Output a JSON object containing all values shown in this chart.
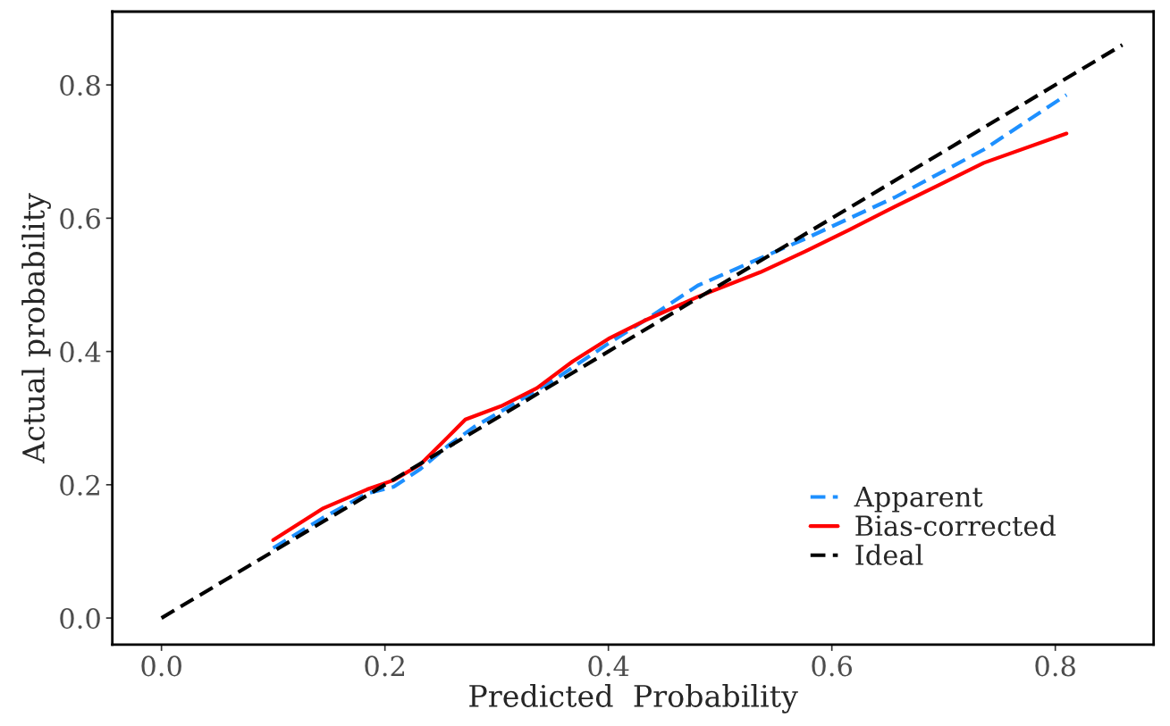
{
  "chart_data": {
    "type": "line",
    "xlabel": "Predicted  Probability",
    "ylabel": "Actual probability",
    "xlim": [
      -0.044,
      0.888
    ],
    "ylim": [
      -0.04,
      0.91
    ],
    "xticks": [
      {
        "value": 0,
        "label": "0.0"
      },
      0.2,
      0.4,
      0.6,
      0.8
    ],
    "yticks": [
      {
        "value": 0,
        "label": "0.0"
      },
      0.2,
      0.4,
      0.6,
      0.8
    ],
    "grid": false,
    "legend": "bottom right",
    "series": [
      {
        "name": "Apparent",
        "color": "#1e90ff",
        "line_style": "dashed",
        "x": [
          0.1,
          0.144,
          0.184,
          0.208,
          0.232,
          0.256,
          0.28,
          0.312,
          0.352,
          0.4,
          0.432,
          0.48,
          0.536,
          0.576,
          0.656,
          0.736,
          0.81
        ],
        "values": [
          0.105,
          0.15,
          0.187,
          0.197,
          0.224,
          0.258,
          0.287,
          0.318,
          0.358,
          0.412,
          0.446,
          0.499,
          0.54,
          0.569,
          0.631,
          0.703,
          0.785
        ]
      },
      {
        "name": "Bias-corrected",
        "color": "#ff0000",
        "line_style": "solid",
        "x": [
          0.1,
          0.144,
          0.184,
          0.208,
          0.232,
          0.256,
          0.272,
          0.304,
          0.336,
          0.368,
          0.4,
          0.432,
          0.48,
          0.536,
          0.576,
          0.616,
          0.656,
          0.696,
          0.736,
          0.81
        ],
        "values": [
          0.117,
          0.164,
          0.193,
          0.207,
          0.231,
          0.271,
          0.298,
          0.318,
          0.345,
          0.385,
          0.419,
          0.446,
          0.482,
          0.519,
          0.55,
          0.583,
          0.617,
          0.65,
          0.683,
          0.727
        ]
      },
      {
        "name": "Ideal",
        "color": "#000000",
        "line_style": "dashed",
        "x": [
          0,
          0.86
        ],
        "values": [
          0,
          0.86
        ]
      }
    ]
  }
}
